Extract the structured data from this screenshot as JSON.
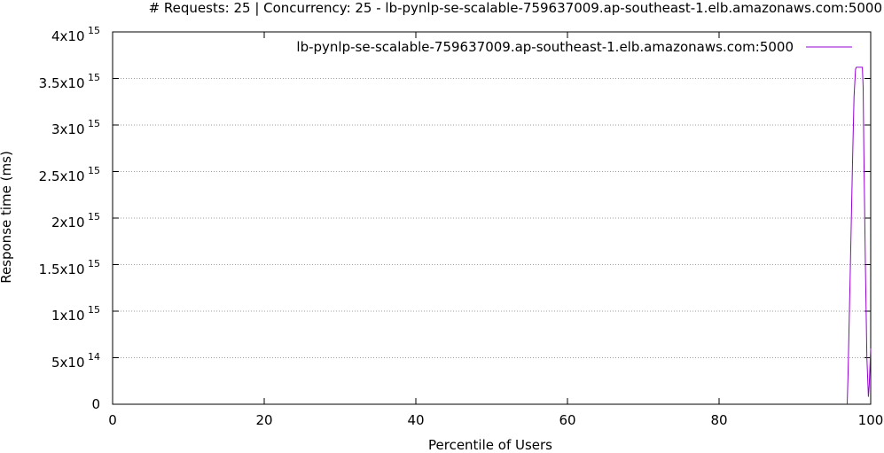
{
  "chart_data": {
    "type": "line",
    "title": "# Requests: 25 | Concurrency: 25 - lb-pynlp-se-scalable-759637009.ap-southeast-1.elb.amazonaws.com:5000",
    "xlabel": "Percentile of Users",
    "ylabel": "Response time (ms)",
    "xlim": [
      0,
      100
    ],
    "ylim": [
      0,
      4000000000000000
    ],
    "xticks": [
      "0",
      "20",
      "40",
      "60",
      "80",
      "100"
    ],
    "yticks": [
      {
        "mantissa": "0",
        "exp": ""
      },
      {
        "mantissa": "5x10",
        "exp": "14"
      },
      {
        "mantissa": "1x10",
        "exp": "15"
      },
      {
        "mantissa": "1.5x10",
        "exp": "15"
      },
      {
        "mantissa": "2x10",
        "exp": "15"
      },
      {
        "mantissa": "2.5x10",
        "exp": "15"
      },
      {
        "mantissa": "3x10",
        "exp": "15"
      },
      {
        "mantissa": "3.5x10",
        "exp": "15"
      },
      {
        "mantissa": "4x10",
        "exp": "15"
      }
    ],
    "grid": "horizontal-dotted",
    "legend_position": "top-right",
    "series": [
      {
        "name": "lb-pynlp-se-scalable-759637009.ap-southeast-1.elb.amazonaws.com:5000",
        "color": "#9400d3",
        "x": [
          96.9,
          97.0,
          97.3,
          97.6,
          97.8,
          98.0,
          98.1,
          98.9,
          99.0,
          99.1,
          99.3,
          99.5,
          99.7,
          99.8,
          100.0
        ],
        "y": [
          0,
          300000000000000,
          1400000000000000,
          2600000000000000,
          3300000000000000,
          3600000000000000,
          3620000000000000,
          3620000000000000,
          3400000000000000,
          2700000000000000,
          1500000000000000,
          500000000000000,
          80000000000000,
          200000000000000,
          600000000000000
        ]
      }
    ]
  }
}
